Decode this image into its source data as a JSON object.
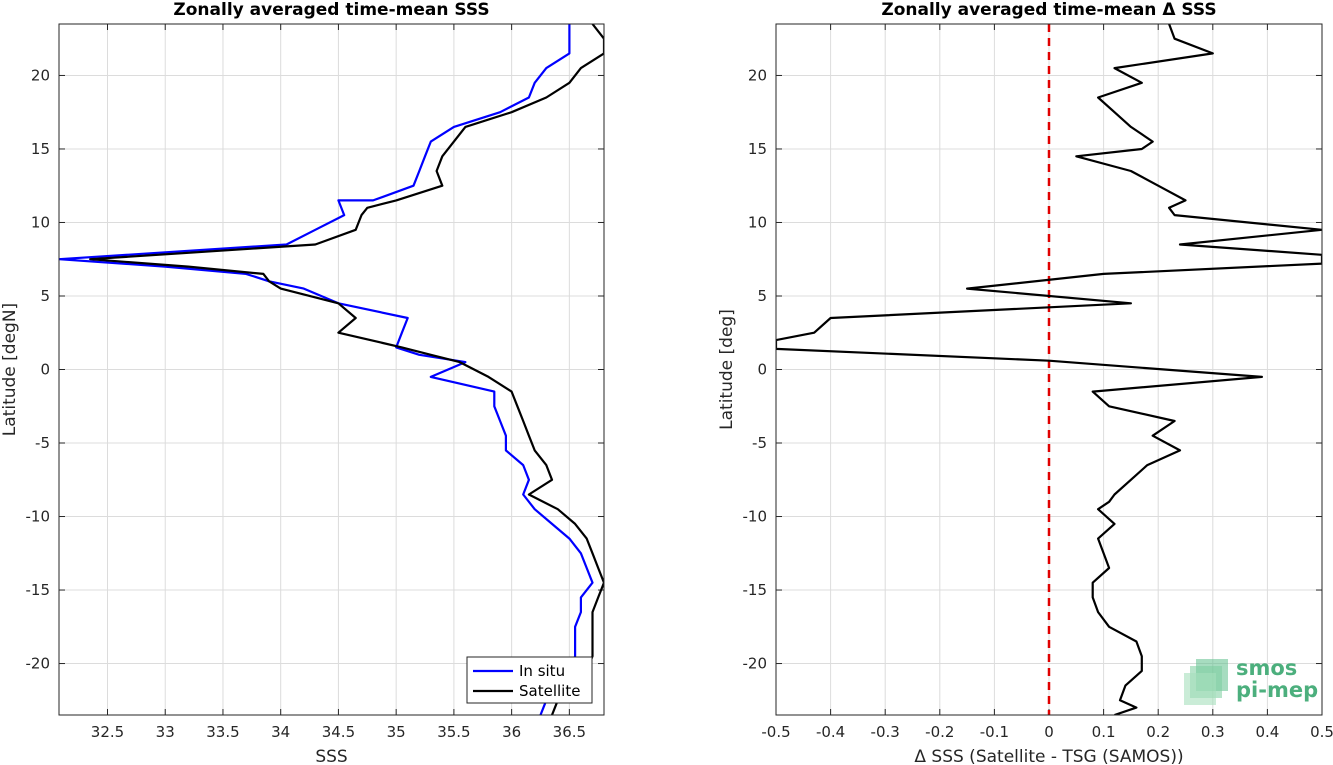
{
  "chart_data": [
    {
      "type": "line",
      "title": "Zonally averaged time-mean SSS",
      "xlabel": "SSS",
      "ylabel": "Latitude [degN]",
      "xlim": [
        32.08,
        36.8
      ],
      "ylim": [
        -23.5,
        23.5
      ],
      "xticks": [
        32.5,
        33,
        33.5,
        34,
        34.5,
        35,
        35.5,
        36,
        36.5
      ],
      "yticks": [
        -20,
        -15,
        -10,
        -5,
        0,
        5,
        10,
        15,
        20
      ],
      "grid": true,
      "legend_position": "bottom-right",
      "series": [
        {
          "name": "In situ",
          "color": "#0000ff",
          "points": [
            [
              36.5,
              23.5
            ],
            [
              36.5,
              22.5
            ],
            [
              36.5,
              21.5
            ],
            [
              36.3,
              20.5
            ],
            [
              36.2,
              19.5
            ],
            [
              36.15,
              18.5
            ],
            [
              35.9,
              17.5
            ],
            [
              35.5,
              16.5
            ],
            [
              35.3,
              15.5
            ],
            [
              35.25,
              14.5
            ],
            [
              35.2,
              13.5
            ],
            [
              35.15,
              12.5
            ],
            [
              34.8,
              11.5
            ],
            [
              34.5,
              11.5
            ],
            [
              34.55,
              10.5
            ],
            [
              34.3,
              9.5
            ],
            [
              34.05,
              8.5
            ],
            [
              32.08,
              7.5
            ],
            [
              33.0,
              7.0
            ],
            [
              33.7,
              6.5
            ],
            [
              33.9,
              6.0
            ],
            [
              34.2,
              5.5
            ],
            [
              34.5,
              4.5
            ],
            [
              35.1,
              3.5
            ],
            [
              35.05,
              2.5
            ],
            [
              35.0,
              1.5
            ],
            [
              35.2,
              1.0
            ],
            [
              35.6,
              0.5
            ],
            [
              35.3,
              -0.5
            ],
            [
              35.85,
              -1.5
            ],
            [
              35.85,
              -2.5
            ],
            [
              35.9,
              -3.5
            ],
            [
              35.95,
              -4.5
            ],
            [
              35.95,
              -5.5
            ],
            [
              36.1,
              -6.5
            ],
            [
              36.15,
              -7.5
            ],
            [
              36.1,
              -8.5
            ],
            [
              36.2,
              -9.5
            ],
            [
              36.35,
              -10.5
            ],
            [
              36.5,
              -11.5
            ],
            [
              36.6,
              -12.5
            ],
            [
              36.65,
              -13.5
            ],
            [
              36.7,
              -14.5
            ],
            [
              36.6,
              -15.5
            ],
            [
              36.6,
              -16.5
            ],
            [
              36.55,
              -17.5
            ],
            [
              36.55,
              -18.5
            ],
            [
              36.55,
              -19.5
            ],
            [
              36.5,
              -20.5
            ],
            [
              36.45,
              -21.5
            ],
            [
              36.3,
              -22.5
            ],
            [
              36.25,
              -23.5
            ]
          ]
        },
        {
          "name": "Satellite",
          "color": "#000000",
          "points": [
            [
              36.7,
              23.5
            ],
            [
              36.8,
              22.5
            ],
            [
              36.8,
              21.5
            ],
            [
              36.6,
              20.5
            ],
            [
              36.5,
              19.5
            ],
            [
              36.3,
              18.5
            ],
            [
              36.0,
              17.5
            ],
            [
              35.6,
              16.5
            ],
            [
              35.5,
              15.5
            ],
            [
              35.4,
              14.5
            ],
            [
              35.35,
              13.5
            ],
            [
              35.4,
              12.5
            ],
            [
              35.0,
              11.5
            ],
            [
              34.75,
              11.0
            ],
            [
              34.7,
              10.5
            ],
            [
              34.65,
              9.5
            ],
            [
              34.3,
              8.5
            ],
            [
              32.35,
              7.5
            ],
            [
              33.2,
              7.0
            ],
            [
              33.85,
              6.5
            ],
            [
              33.9,
              6.0
            ],
            [
              34.0,
              5.5
            ],
            [
              34.5,
              4.5
            ],
            [
              34.65,
              3.5
            ],
            [
              34.5,
              2.5
            ],
            [
              35.05,
              1.5
            ],
            [
              35.3,
              1.0
            ],
            [
              35.55,
              0.5
            ],
            [
              35.8,
              -0.5
            ],
            [
              36.0,
              -1.5
            ],
            [
              36.05,
              -2.5
            ],
            [
              36.1,
              -3.5
            ],
            [
              36.15,
              -4.5
            ],
            [
              36.2,
              -5.5
            ],
            [
              36.3,
              -6.5
            ],
            [
              36.35,
              -7.5
            ],
            [
              36.15,
              -8.5
            ],
            [
              36.4,
              -9.5
            ],
            [
              36.55,
              -10.5
            ],
            [
              36.65,
              -11.5
            ],
            [
              36.7,
              -12.5
            ],
            [
              36.75,
              -13.5
            ],
            [
              36.8,
              -14.5
            ],
            [
              36.75,
              -15.5
            ],
            [
              36.7,
              -16.5
            ],
            [
              36.7,
              -17.5
            ],
            [
              36.7,
              -18.5
            ],
            [
              36.7,
              -19.5
            ],
            [
              36.65,
              -20.5
            ],
            [
              36.6,
              -21.5
            ],
            [
              36.4,
              -22.5
            ],
            [
              36.35,
              -23.5
            ]
          ]
        }
      ]
    },
    {
      "type": "line",
      "title": "Zonally averaged time-mean Δ SSS",
      "xlabel": "Δ SSS (Satellite - TSG (SAMOS))",
      "ylabel": "Latitude [deg]",
      "xlim": [
        -0.5,
        0.5
      ],
      "ylim": [
        -23.5,
        23.5
      ],
      "xticks": [
        -0.5,
        -0.4,
        -0.3,
        -0.2,
        -0.1,
        0,
        0.1,
        0.2,
        0.3,
        0.4,
        0.5
      ],
      "yticks": [
        -20,
        -15,
        -10,
        -5,
        0,
        5,
        10,
        15,
        20
      ],
      "grid": true,
      "reference_line": {
        "x": 0,
        "color": "#e00000",
        "style": "dashed"
      },
      "series": [
        {
          "name": "",
          "color": "#000000",
          "points": [
            [
              0.22,
              23.5
            ],
            [
              0.23,
              22.5
            ],
            [
              0.3,
              21.5
            ],
            [
              0.12,
              20.5
            ],
            [
              0.17,
              19.5
            ],
            [
              0.09,
              18.5
            ],
            [
              0.12,
              17.5
            ],
            [
              0.15,
              16.5
            ],
            [
              0.19,
              15.5
            ],
            [
              0.17,
              15.0
            ],
            [
              0.05,
              14.5
            ],
            [
              0.15,
              13.5
            ],
            [
              0.2,
              12.5
            ],
            [
              0.25,
              11.5
            ],
            [
              0.22,
              11.0
            ],
            [
              0.23,
              10.5
            ],
            [
              0.5,
              9.5
            ],
            [
              0.24,
              8.5
            ],
            [
              0.5,
              7.8
            ],
            [
              0.5,
              7.2
            ],
            [
              0.1,
              6.5
            ],
            [
              -0.15,
              5.5
            ],
            [
              0.15,
              4.5
            ],
            [
              -0.4,
              3.5
            ],
            [
              -0.43,
              2.5
            ],
            [
              -0.5,
              2.0
            ],
            [
              -0.5,
              1.4
            ],
            [
              0.0,
              0.6
            ],
            [
              0.39,
              -0.5
            ],
            [
              0.08,
              -1.5
            ],
            [
              0.11,
              -2.5
            ],
            [
              0.23,
              -3.5
            ],
            [
              0.19,
              -4.5
            ],
            [
              0.24,
              -5.5
            ],
            [
              0.18,
              -6.5
            ],
            [
              0.15,
              -7.5
            ],
            [
              0.12,
              -8.5
            ],
            [
              0.11,
              -9.0
            ],
            [
              0.09,
              -9.5
            ],
            [
              0.12,
              -10.5
            ],
            [
              0.09,
              -11.5
            ],
            [
              0.1,
              -12.5
            ],
            [
              0.11,
              -13.5
            ],
            [
              0.08,
              -14.5
            ],
            [
              0.08,
              -15.5
            ],
            [
              0.09,
              -16.5
            ],
            [
              0.11,
              -17.5
            ],
            [
              0.16,
              -18.5
            ],
            [
              0.17,
              -19.5
            ],
            [
              0.17,
              -20.5
            ],
            [
              0.14,
              -21.5
            ],
            [
              0.13,
              -22.5
            ],
            [
              0.16,
              -23.0
            ],
            [
              0.12,
              -23.5
            ]
          ]
        }
      ]
    }
  ],
  "logo": {
    "line1": "smos",
    "line2": "pi-mep",
    "color": "#4caf7d"
  }
}
